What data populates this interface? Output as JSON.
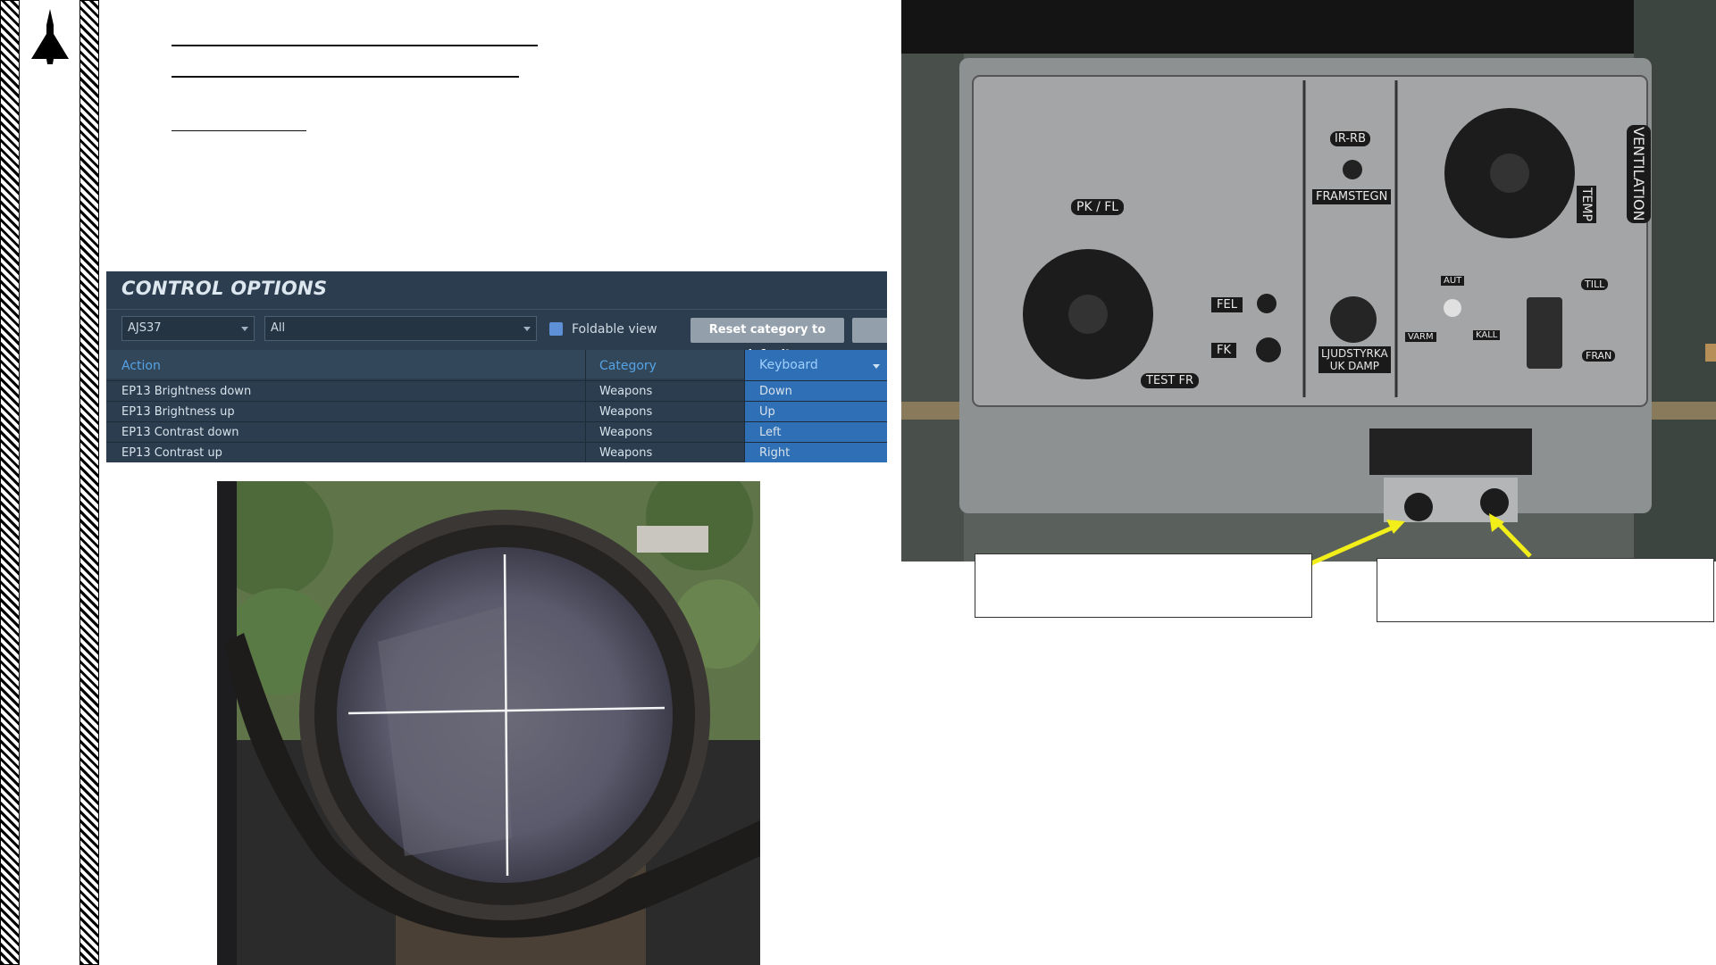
{
  "control_options": {
    "title": "CONTROL OPTIONS",
    "aircraft_select": "AJS37",
    "category_select": "All",
    "foldable_label": "Foldable view",
    "reset_button": "Reset category to default",
    "columns": {
      "action": "Action",
      "category": "Category",
      "keyboard": "Keyboard"
    },
    "rows": [
      {
        "action": "EP13 Brightness down",
        "category": "Weapons",
        "keyboard": "Down"
      },
      {
        "action": "EP13 Brightness up",
        "category": "Weapons",
        "keyboard": "Up"
      },
      {
        "action": "EP13 Contrast down",
        "category": "Weapons",
        "keyboard": "Left"
      },
      {
        "action": "EP13 Contrast up",
        "category": "Weapons",
        "keyboard": "Right"
      }
    ]
  },
  "panel": {
    "labels": {
      "pk_fl": "PK / FL",
      "ir_rb": "IR-RB",
      "framstegn": "FRAMSTEGN",
      "ventilation": "VENTILATION",
      "temp": "TEMP",
      "fel": "FEL",
      "fk": "FK",
      "test_fr": "TEST FR",
      "ljudstyrka": "LJUDSTYRKA",
      "uk_damp": "UK DAMP",
      "aut": "AUT",
      "varm": "VARM",
      "kall": "KALL",
      "till": "TILL",
      "fran": "FRAN"
    }
  },
  "colors": {
    "callout_arrow": "#f2ee1a",
    "co_background": "#2b3d4f",
    "highlight": "#2f6fb6"
  }
}
